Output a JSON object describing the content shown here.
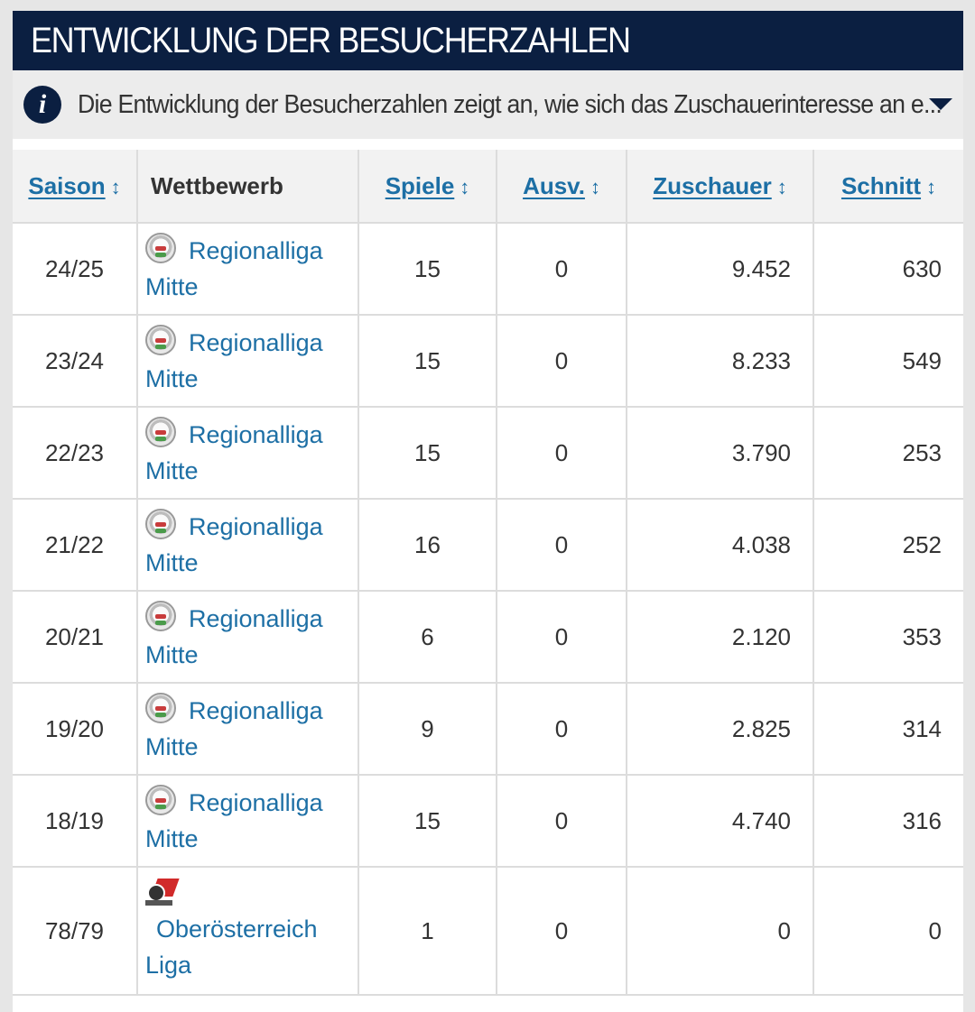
{
  "header": {
    "title": "ENTWICKLUNG DER BESUCHERZAHLEN"
  },
  "info": {
    "text": "Die Entwicklung der Besucherzahlen zeigt an, wie sich das Zuschauerinteresse an e..."
  },
  "table": {
    "columns": [
      {
        "label": "Saison",
        "sortable": true
      },
      {
        "label": "Wettbewerb",
        "sortable": false
      },
      {
        "label": "Spiele",
        "sortable": true
      },
      {
        "label": "Ausv.",
        "sortable": true
      },
      {
        "label": "Zuschauer",
        "sortable": true
      },
      {
        "label": "Schnitt",
        "sortable": true
      }
    ],
    "sort_arrow": "↕",
    "rows": [
      {
        "saison": "24/25",
        "wettbewerb": "Regionalliga Mitte",
        "spiele": "15",
        "ausv": "0",
        "zuschauer": "9.452",
        "schnitt": "630",
        "logo": "regionalliga-logo"
      },
      {
        "saison": "23/24",
        "wettbewerb": "Regionalliga Mitte",
        "spiele": "15",
        "ausv": "0",
        "zuschauer": "8.233",
        "schnitt": "549",
        "logo": "regionalliga-logo"
      },
      {
        "saison": "22/23",
        "wettbewerb": "Regionalliga Mitte",
        "spiele": "15",
        "ausv": "0",
        "zuschauer": "3.790",
        "schnitt": "253",
        "logo": "regionalliga-logo"
      },
      {
        "saison": "21/22",
        "wettbewerb": "Regionalliga Mitte",
        "spiele": "16",
        "ausv": "0",
        "zuschauer": "4.038",
        "schnitt": "252",
        "logo": "regionalliga-logo"
      },
      {
        "saison": "20/21",
        "wettbewerb": "Regionalliga Mitte",
        "spiele": "6",
        "ausv": "0",
        "zuschauer": "2.120",
        "schnitt": "353",
        "logo": "regionalliga-logo"
      },
      {
        "saison": "19/20",
        "wettbewerb": "Regionalliga Mitte",
        "spiele": "9",
        "ausv": "0",
        "zuschauer": "2.825",
        "schnitt": "314",
        "logo": "regionalliga-logo"
      },
      {
        "saison": "18/19",
        "wettbewerb": "Regionalliga Mitte",
        "spiele": "15",
        "ausv": "0",
        "zuschauer": "4.740",
        "schnitt": "316",
        "logo": "regionalliga-logo"
      },
      {
        "saison": "78/79",
        "wettbewerb": "Oberösterreich Liga",
        "spiele": "1",
        "ausv": "0",
        "zuschauer": "0",
        "schnitt": "0",
        "logo": "ooe-liga-logo"
      }
    ]
  },
  "colors": {
    "header_bg": "#0b1f41",
    "link": "#1d6fa5",
    "border": "#dcdcdc"
  }
}
